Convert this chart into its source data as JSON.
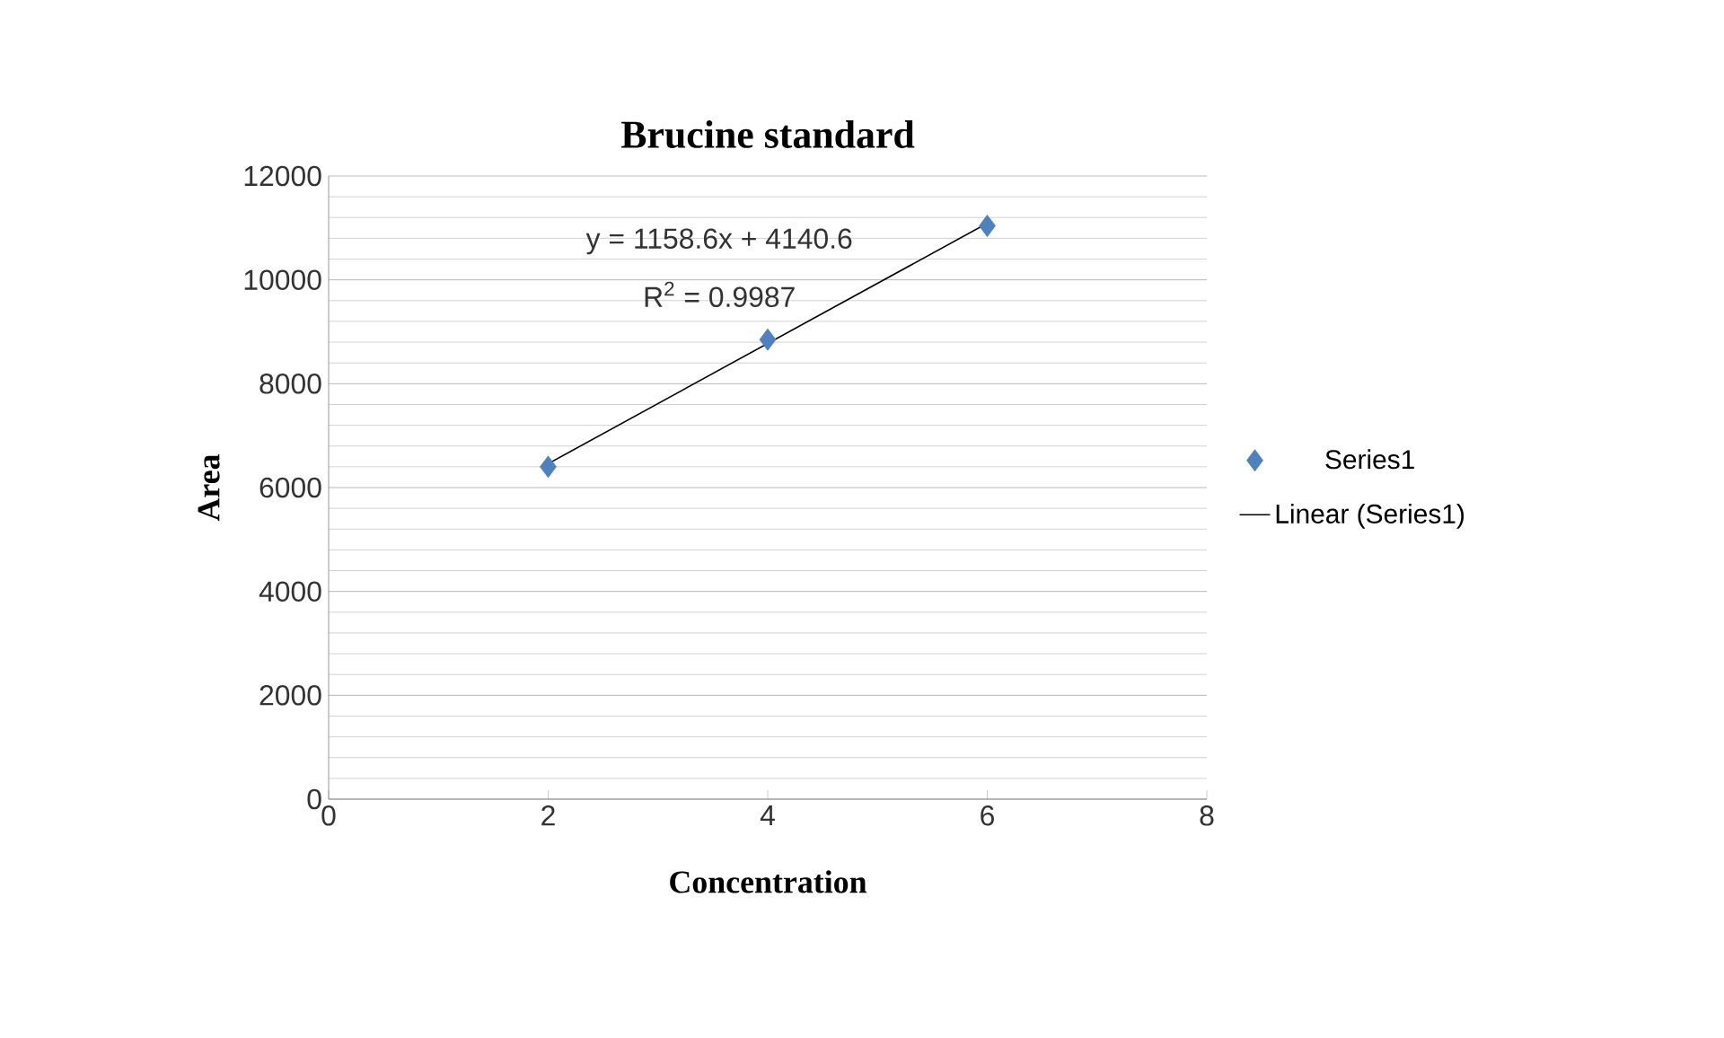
{
  "chart_data": {
    "type": "scatter",
    "title": "Brucine standard",
    "xlabel": "Concentration",
    "ylabel": "Area",
    "xlim": [
      0,
      8
    ],
    "xticks": [
      0,
      2,
      4,
      6,
      8
    ],
    "ylim": [
      0,
      12000
    ],
    "yticks": [
      0,
      2000,
      4000,
      6000,
      8000,
      10000,
      12000
    ],
    "series": [
      {
        "name": "Series1",
        "color": "#4f81bd",
        "marker": "diamond",
        "x": [
          2,
          4,
          6
        ],
        "values": [
          6400,
          8850,
          11040
        ]
      },
      {
        "name": "Linear (Series1)",
        "type": "line",
        "color": "#000000",
        "marker": "none",
        "line_style": "solid",
        "x": [
          2,
          6
        ],
        "values": [
          6460,
          11090
        ]
      }
    ],
    "annotations": [
      "y = 1158.6x + 4140.6",
      "R$^{2}$ = 0.9987"
    ],
    "grid": "y",
    "legend": "right"
  }
}
